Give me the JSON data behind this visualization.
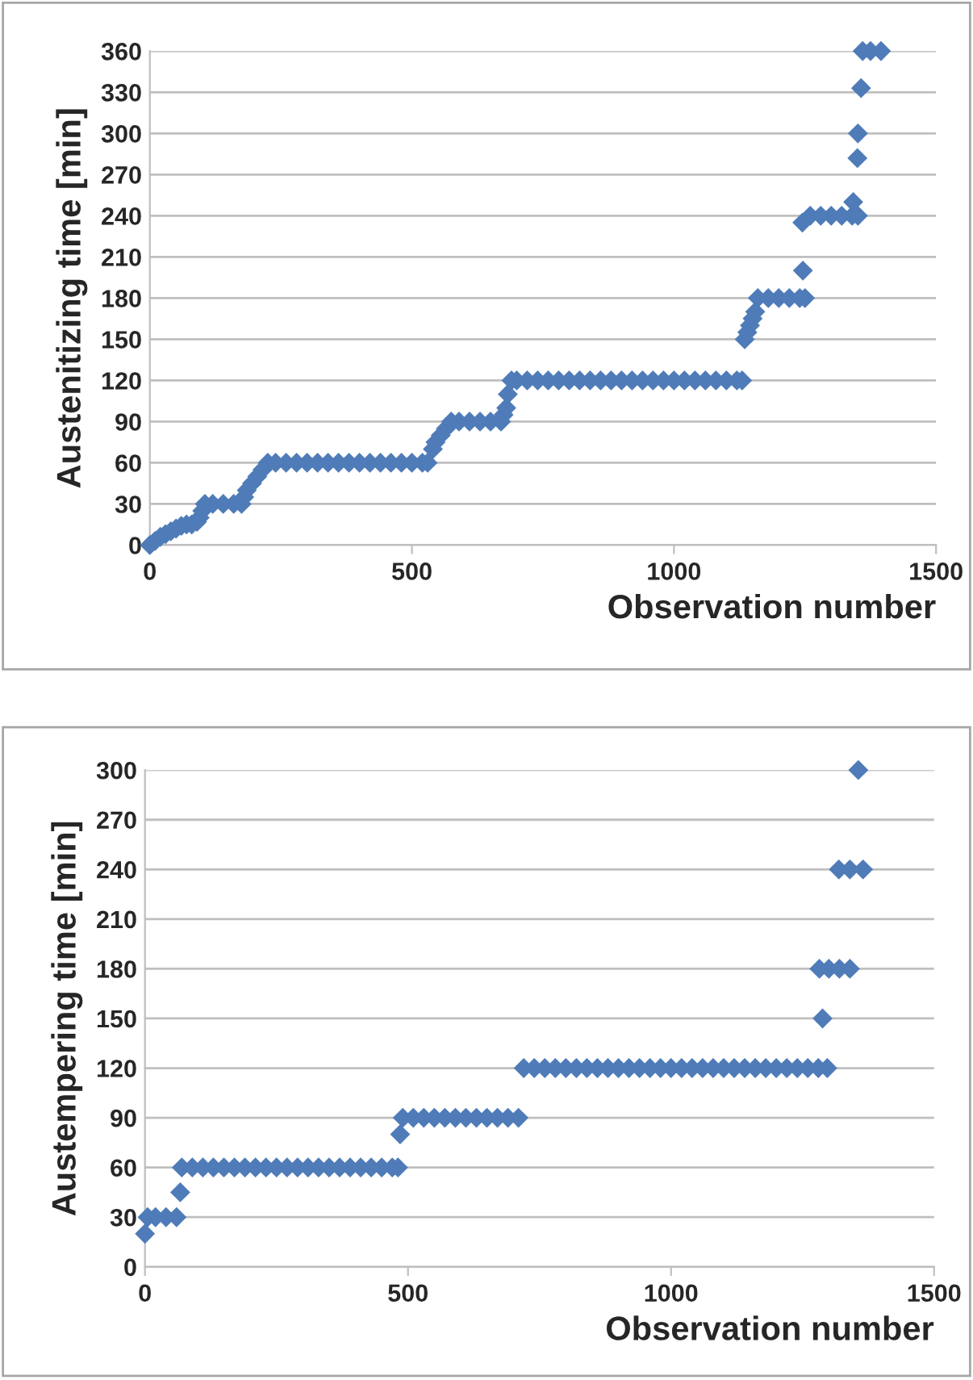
{
  "chart_data": [
    {
      "type": "scatter",
      "xlabel": "Observation number",
      "ylabel": "Austenitizing time [min]",
      "marker": "diamond",
      "grid": "y",
      "xlim": [
        0,
        1500
      ],
      "xticks": [
        0,
        500,
        1000,
        1500
      ],
      "ylim": [
        0,
        360
      ],
      "yticks": [
        0,
        30,
        60,
        90,
        120,
        150,
        180,
        210,
        240,
        270,
        300,
        330,
        360
      ],
      "series": [
        {
          "color": "#4f7cb8",
          "x": [
            0,
            10,
            20,
            30,
            40,
            50,
            60,
            70,
            80,
            90,
            95,
            100,
            105,
            120,
            140,
            160,
            175,
            180,
            185,
            195,
            205,
            215,
            225,
            240,
            260,
            280,
            300,
            320,
            340,
            360,
            380,
            400,
            420,
            440,
            460,
            480,
            500,
            520,
            530,
            540,
            545,
            555,
            565,
            575,
            590,
            610,
            630,
            650,
            670,
            675,
            680,
            683,
            690,
            700,
            720,
            740,
            760,
            780,
            800,
            820,
            840,
            860,
            880,
            900,
            920,
            940,
            960,
            980,
            1000,
            1020,
            1040,
            1060,
            1080,
            1100,
            1120,
            1130,
            1135,
            1140,
            1145,
            1150,
            1155,
            1160,
            1180,
            1200,
            1220,
            1240,
            1250,
            1246,
            1245,
            1260,
            1280,
            1300,
            1320,
            1340,
            1351,
            1342,
            1350,
            1351,
            1357,
            1360,
            1375,
            1395
          ],
          "values": [
            0,
            3,
            6,
            8,
            10,
            12,
            14,
            15,
            15,
            17,
            20,
            25,
            30,
            30,
            30,
            30,
            30,
            35,
            40,
            45,
            50,
            55,
            60,
            60,
            60,
            60,
            60,
            60,
            60,
            60,
            60,
            60,
            60,
            60,
            60,
            60,
            60,
            60,
            60,
            70,
            75,
            80,
            85,
            90,
            90,
            90,
            90,
            90,
            90,
            95,
            100,
            110,
            120,
            120,
            120,
            120,
            120,
            120,
            120,
            120,
            120,
            120,
            120,
            120,
            120,
            120,
            120,
            120,
            120,
            120,
            120,
            120,
            120,
            120,
            120,
            120,
            150,
            155,
            160,
            165,
            170,
            180,
            180,
            180,
            180,
            180,
            180,
            200,
            235,
            240,
            240,
            240,
            240,
            240,
            240,
            250,
            282,
            300,
            333,
            360,
            360,
            360
          ]
        }
      ]
    },
    {
      "type": "scatter",
      "xlabel": "Observation number",
      "ylabel": "Austempering time [min]",
      "marker": "diamond",
      "grid": "y",
      "xlim": [
        0,
        1500
      ],
      "xticks": [
        0,
        500,
        1000,
        1500
      ],
      "ylim": [
        0,
        300
      ],
      "yticks": [
        0,
        30,
        60,
        90,
        120,
        150,
        180,
        210,
        240,
        270,
        300
      ],
      "series": [
        {
          "color": "#4f7cb8",
          "x": [
            0,
            5,
            20,
            40,
            60,
            67,
            70,
            90,
            110,
            130,
            150,
            170,
            190,
            210,
            230,
            250,
            270,
            290,
            310,
            330,
            350,
            370,
            390,
            410,
            430,
            450,
            470,
            481,
            485,
            490,
            510,
            530,
            550,
            570,
            590,
            610,
            630,
            650,
            670,
            690,
            710,
            720,
            740,
            760,
            780,
            800,
            820,
            840,
            860,
            880,
            900,
            920,
            940,
            960,
            980,
            1000,
            1020,
            1040,
            1060,
            1080,
            1100,
            1120,
            1140,
            1160,
            1180,
            1200,
            1220,
            1240,
            1260,
            1280,
            1297,
            1288,
            1282,
            1300,
            1320,
            1340,
            1319,
            1340,
            1365,
            1356
          ],
          "values": [
            20,
            30,
            30,
            30,
            30,
            45,
            60,
            60,
            60,
            60,
            60,
            60,
            60,
            60,
            60,
            60,
            60,
            60,
            60,
            60,
            60,
            60,
            60,
            60,
            60,
            60,
            60,
            60,
            80,
            90,
            90,
            90,
            90,
            90,
            90,
            90,
            90,
            90,
            90,
            90,
            90,
            120,
            120,
            120,
            120,
            120,
            120,
            120,
            120,
            120,
            120,
            120,
            120,
            120,
            120,
            120,
            120,
            120,
            120,
            120,
            120,
            120,
            120,
            120,
            120,
            120,
            120,
            120,
            120,
            120,
            120,
            150,
            180,
            180,
            180,
            180,
            240,
            240,
            240,
            300
          ]
        }
      ]
    }
  ]
}
